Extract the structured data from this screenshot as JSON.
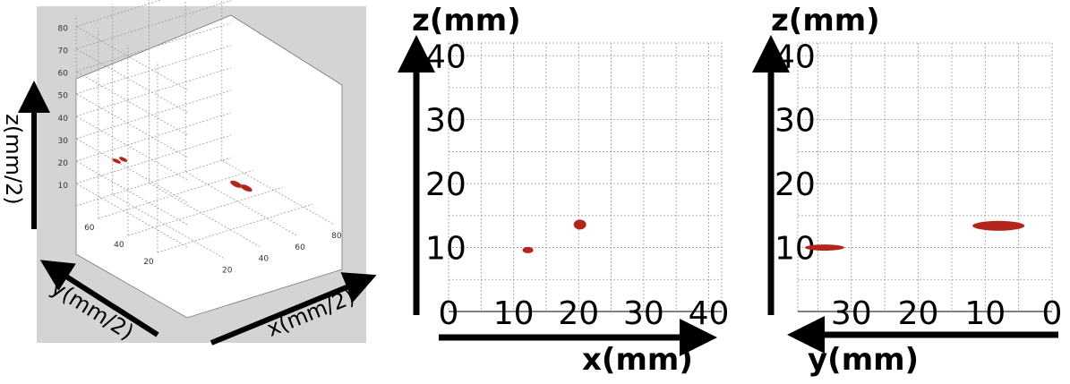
{
  "chart_data": [
    {
      "type": "scatter",
      "view": "3d-isometric",
      "xlabel": "x(mm/2)",
      "ylabel": "y(mm/2)",
      "zlabel": "z(mm/2)",
      "xticks": [
        "20",
        "40",
        "60",
        "80"
      ],
      "yticks": [
        "20",
        "40",
        "60"
      ],
      "zticks": [
        "10",
        "20",
        "30",
        "40",
        "50",
        "60",
        "70",
        "80"
      ],
      "xlim": [
        0,
        85
      ],
      "ylim": [
        0,
        75
      ],
      "zlim": [
        0,
        85
      ],
      "grid": true,
      "series": [
        {
          "color": "#b2251c",
          "points": [
            [
              6,
              55,
              26
            ],
            [
              8,
              53,
              27
            ],
            [
              48,
              26,
              16
            ],
            [
              52,
              24,
              14
            ]
          ]
        }
      ]
    },
    {
      "type": "scatter",
      "view": "projection-xz",
      "xlabel": "x(mm)",
      "ylabel": "z(mm)",
      "xticks": [
        "0",
        "10",
        "20",
        "30",
        "40"
      ],
      "yticks": [
        "10",
        "20",
        "30",
        "40"
      ],
      "xlim": [
        0,
        42
      ],
      "ylim": [
        0,
        42
      ],
      "grid": true,
      "series": [
        {
          "color": "#b2251c",
          "points": [
            [
              12.2,
              9.6
            ],
            [
              20.2,
              13.6
            ]
          ]
        }
      ]
    },
    {
      "type": "scatter",
      "view": "projection-yz",
      "xlabel": "y(mm)",
      "ylabel": "z(mm)",
      "xticks": [
        "30",
        "20",
        "10",
        "0"
      ],
      "yticks": [
        "10",
        "20",
        "30",
        "40"
      ],
      "xlim": [
        38,
        0
      ],
      "ylim": [
        0,
        42
      ],
      "grid": true,
      "series": [
        {
          "color": "#b2251c",
          "points": [
            [
              34,
              10.0
            ],
            [
              8,
              13.4
            ]
          ]
        }
      ]
    }
  ]
}
